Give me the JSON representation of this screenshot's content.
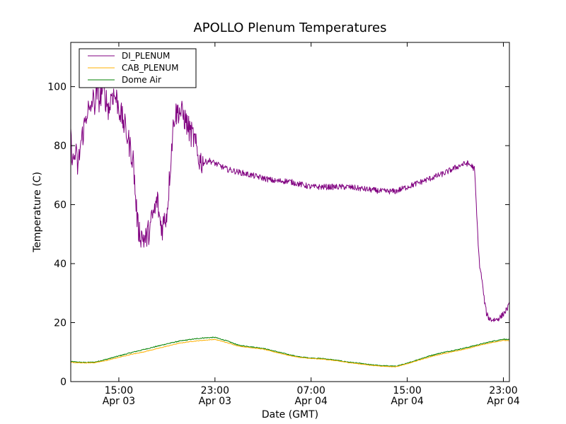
{
  "chart_data": {
    "type": "line",
    "title": "APOLLO Plenum Temperatures",
    "xlabel": "Date (GMT)",
    "ylabel": "Temperature (C)",
    "x_unit": "hours since Apr 03 00:00 GMT",
    "xlim": [
      11.0,
      47.5
    ],
    "ylim": [
      0,
      115
    ],
    "yticks": [
      0,
      20,
      40,
      60,
      80,
      100
    ],
    "xticks": [
      {
        "x": 15,
        "label_time": "15:00",
        "label_date": "Apr 03"
      },
      {
        "x": 23,
        "label_time": "23:00",
        "label_date": "Apr 03"
      },
      {
        "x": 31,
        "label_time": "07:00",
        "label_date": "Apr 04"
      },
      {
        "x": 39,
        "label_time": "15:00",
        "label_date": "Apr 04"
      },
      {
        "x": 47,
        "label_time": "23:00",
        "label_date": "Apr 04"
      }
    ],
    "grid": false,
    "legend_position": "top-left",
    "series": [
      {
        "name": "DI_PLENUM",
        "color": "#800080",
        "noise": 1.0,
        "x": [
          11.0,
          11.2,
          11.4,
          11.6,
          11.8,
          12.0,
          12.2,
          12.4,
          12.6,
          12.8,
          13.0,
          13.2,
          13.4,
          13.6,
          13.8,
          14.0,
          14.2,
          14.4,
          14.6,
          14.8,
          15.0,
          15.3,
          15.6,
          15.9,
          16.2,
          16.4,
          16.6,
          16.8,
          17.0,
          17.2,
          17.4,
          17.6,
          17.8,
          18.0,
          18.2,
          18.4,
          18.6,
          18.8,
          19.0,
          19.2,
          19.4,
          19.6,
          19.8,
          20.0,
          20.2,
          20.4,
          20.6,
          20.8,
          21.0,
          21.2,
          21.4,
          21.6,
          21.8,
          22.0,
          22.5,
          23.0,
          23.5,
          24.0,
          25.0,
          26.0,
          27.0,
          28.0,
          29.0,
          30.0,
          31.0,
          32.0,
          33.0,
          34.0,
          35.0,
          36.0,
          37.0,
          38.0,
          39.0,
          40.0,
          41.0,
          42.0,
          42.5,
          43.0,
          43.5,
          44.0,
          44.4,
          44.6,
          44.8,
          45.0,
          45.2,
          45.4,
          45.6,
          45.8,
          46.0,
          46.4,
          46.8,
          47.2,
          47.5
        ],
        "values": [
          82,
          74,
          78,
          72,
          80,
          84,
          88,
          93,
          90,
          96,
          94,
          98,
          95,
          99,
          97,
          95,
          92,
          98,
          97,
          96,
          93,
          89,
          85,
          80,
          75,
          62,
          52,
          50,
          49,
          48,
          50,
          52,
          56,
          58,
          62,
          55,
          52,
          55,
          57,
          68,
          80,
          90,
          91,
          92,
          91,
          90,
          88,
          86,
          84,
          83,
          80,
          76,
          75,
          74,
          75,
          74,
          73,
          72,
          71,
          70,
          69,
          68,
          68,
          67,
          66,
          66,
          66,
          66,
          65.5,
          65,
          64.5,
          64.5,
          66,
          67.5,
          69,
          70.5,
          71.5,
          72.5,
          73.5,
          74,
          73,
          72,
          55,
          40,
          35,
          28,
          23,
          21.5,
          21,
          21,
          22,
          24,
          26
        ]
      },
      {
        "name": "CAB_PLENUM",
        "color": "#ffb000",
        "noise": 0.1,
        "x": [
          11.0,
          12.0,
          13.0,
          14.0,
          15.0,
          16.0,
          17.0,
          18.0,
          19.0,
          20.0,
          21.0,
          22.0,
          23.0,
          24.0,
          25.0,
          26.0,
          27.0,
          28.0,
          29.0,
          30.0,
          31.0,
          32.0,
          33.0,
          34.0,
          35.0,
          36.0,
          37.0,
          38.0,
          39.0,
          40.0,
          41.0,
          42.0,
          43.0,
          44.0,
          45.0,
          46.0,
          47.0,
          47.5
        ],
        "values": [
          6.5,
          6.3,
          6.4,
          7.2,
          8.2,
          9.2,
          10.0,
          11.0,
          12.0,
          13.0,
          13.6,
          14.0,
          14.3,
          13.2,
          12.0,
          11.5,
          11.0,
          10.0,
          9.0,
          8.2,
          7.8,
          7.6,
          7.1,
          6.5,
          6.0,
          5.5,
          5.2,
          5.0,
          6.0,
          7.3,
          8.5,
          9.5,
          10.3,
          11.2,
          12.3,
          13.2,
          14.0,
          13.8
        ]
      },
      {
        "name": "Dome Air",
        "color": "#008000",
        "noise": 0.15,
        "x": [
          11.0,
          12.0,
          13.0,
          14.0,
          15.0,
          16.0,
          17.0,
          18.0,
          19.0,
          20.0,
          21.0,
          22.0,
          23.0,
          24.0,
          25.0,
          26.0,
          27.0,
          28.0,
          29.0,
          30.0,
          31.0,
          32.0,
          33.0,
          34.0,
          35.0,
          36.0,
          37.0,
          38.0,
          39.0,
          40.0,
          41.0,
          42.0,
          43.0,
          44.0,
          45.0,
          46.0,
          47.0,
          47.5
        ],
        "values": [
          6.8,
          6.5,
          6.6,
          7.6,
          8.7,
          9.8,
          10.8,
          11.8,
          12.8,
          13.7,
          14.3,
          14.8,
          15.0,
          13.8,
          12.3,
          11.8,
          11.3,
          10.3,
          9.3,
          8.4,
          8.0,
          7.8,
          7.3,
          6.7,
          6.2,
          5.7,
          5.4,
          5.2,
          6.2,
          7.6,
          8.9,
          9.9,
          10.7,
          11.6,
          12.6,
          13.6,
          14.4,
          14.2
        ]
      }
    ]
  }
}
